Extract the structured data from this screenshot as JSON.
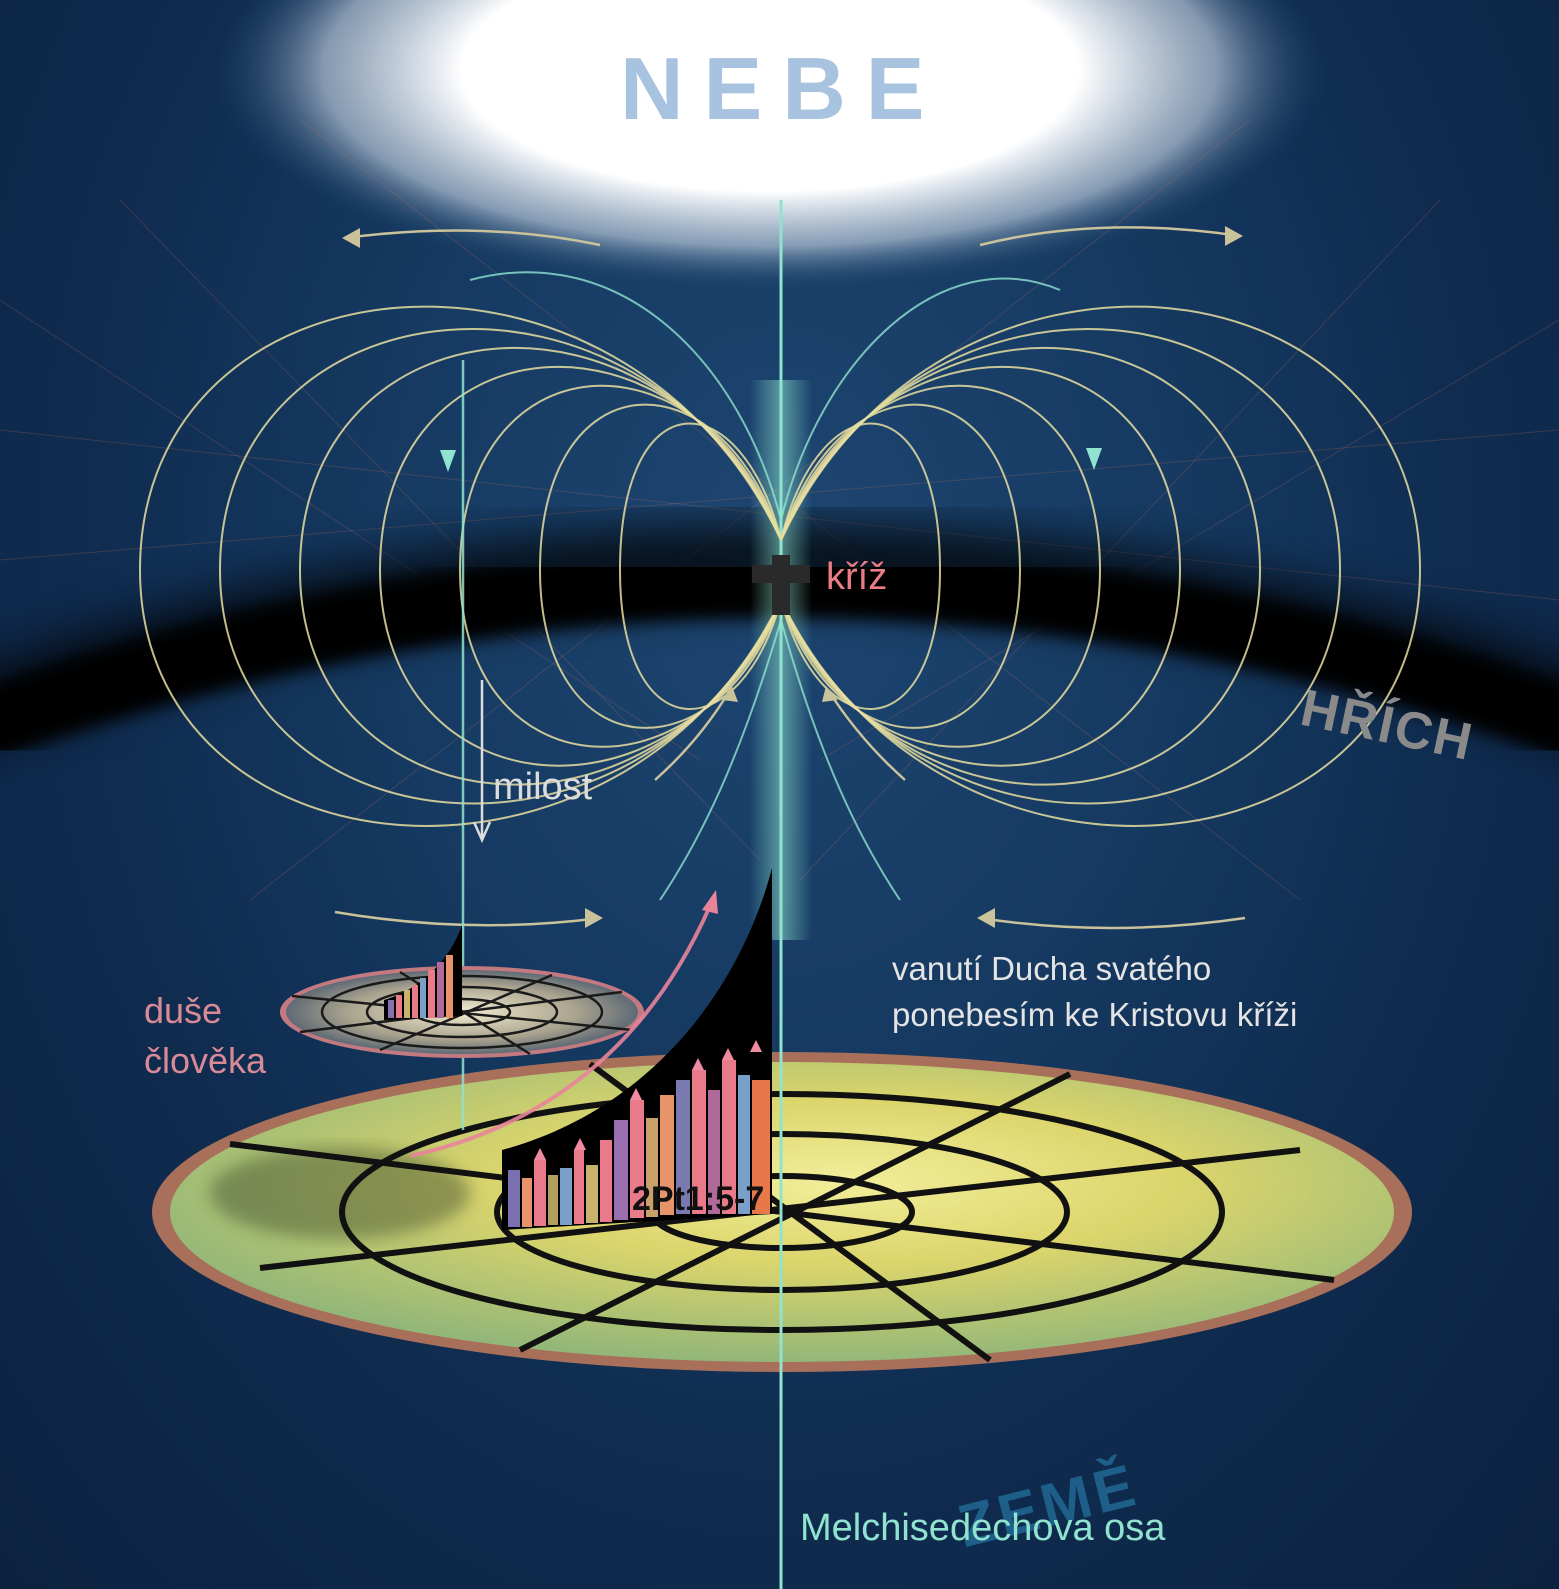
{
  "labels": {
    "heaven": "NEBE",
    "cross": "kříž",
    "sin": "HŘÍCH",
    "grace": "milost",
    "soul_line1": "duše",
    "soul_line2": "člověka",
    "spirit_line1": "vanutí Ducha svatého",
    "spirit_line2": "ponebesím ke Kristovu kříži",
    "reference": "2Pt1:5-7",
    "earth": "ZEMĚ",
    "axis": "Melchisedechova osa"
  },
  "colors": {
    "background": "#163a62",
    "heaven_glow": "#ffffff",
    "sin_band": "#000000",
    "field_lines": "#e8dea0",
    "axis": "#8fe3cf",
    "cross_label": "#ea7c86",
    "soul_label": "#d98a96",
    "earth_disc": "#d8d26a",
    "earth_rim": "#a8705a"
  }
}
